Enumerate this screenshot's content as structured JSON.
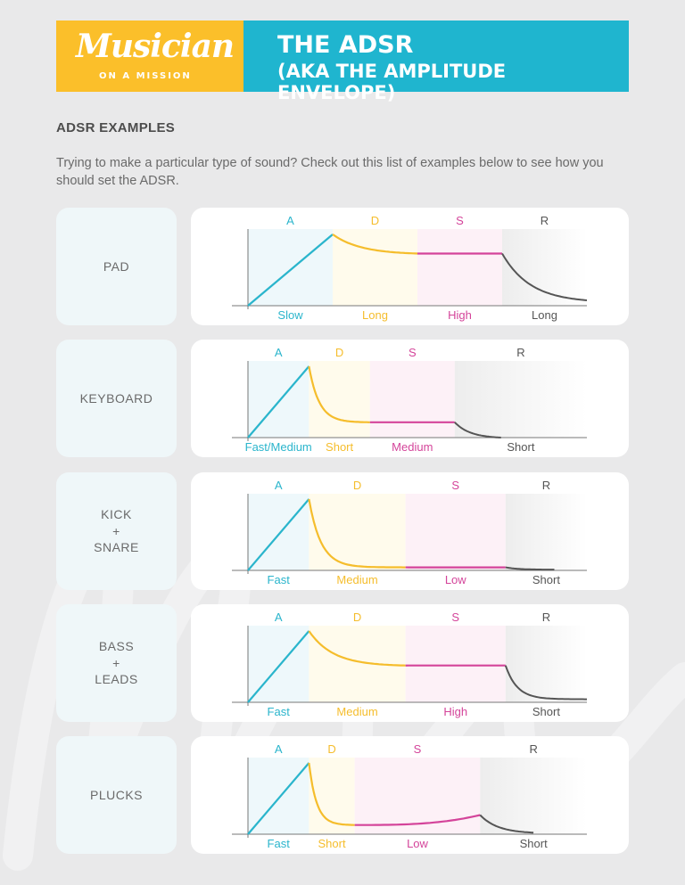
{
  "colors": {
    "attack": "#2ab5cc",
    "decay": "#f5bd2c",
    "sustain": "#d4449a",
    "release": "#555555",
    "banner_yellow": "#fbbf2a",
    "banner_teal": "#1fb5cf"
  },
  "header": {
    "logo_script": "Musician",
    "logo_sub": "ON A MISSION",
    "title_line1": "THE ADSR",
    "title_line2": "(AKA THE AMPLITUDE ENVELOPE)"
  },
  "section": {
    "heading": "ADSR EXAMPLES",
    "intro": "Trying to make a particular type of sound? Check out this list of examples below to see how you should set the ADSR."
  },
  "stage_letters": [
    "A",
    "D",
    "S",
    "R"
  ],
  "chart_data": [
    {
      "type": "diagram",
      "name_lines": [
        "PAD"
      ],
      "values": [
        "Slow",
        "Long",
        "High",
        "Long"
      ],
      "stage_fractions": [
        0.25,
        0.25,
        0.25,
        0.25
      ],
      "sustain_level": 0.68,
      "sustain_end_level": 0.68,
      "decay_curve": 3,
      "release_curve": 3,
      "release_end_level": 0.07
    },
    {
      "type": "diagram",
      "name_lines": [
        "KEYBOARD"
      ],
      "values": [
        "Fast/Medium",
        "Short",
        "Medium",
        "Short"
      ],
      "stage_fractions": [
        0.18,
        0.18,
        0.25,
        0.39
      ],
      "sustain_level": 0.2,
      "sustain_end_level": 0.2,
      "decay_curve": 6,
      "release_curve": 3,
      "release_end_level": 0.0,
      "release_span": 0.35
    },
    {
      "type": "diagram",
      "name_lines": [
        "KICK",
        "+",
        "SNARE"
      ],
      "values": [
        "Fast",
        "Medium",
        "Low",
        "Short"
      ],
      "stage_fractions": [
        0.18,
        0.285,
        0.295,
        0.24
      ],
      "sustain_level": 0.04,
      "sustain_end_level": 0.04,
      "decay_curve": 8,
      "release_curve": 4,
      "release_end_level": 0.01,
      "release_span": 0.6
    },
    {
      "type": "diagram",
      "name_lines": [
        "BASS",
        "+",
        "LEADS"
      ],
      "values": [
        "Fast",
        "Medium",
        "High",
        "Short"
      ],
      "stage_fractions": [
        0.18,
        0.285,
        0.295,
        0.24
      ],
      "sustain_level": 0.48,
      "sustain_end_level": 0.48,
      "decay_curve": 4,
      "release_curve": 7,
      "release_end_level": 0.04
    },
    {
      "type": "diagram",
      "name_lines": [
        "PLUCKS"
      ],
      "values": [
        "Fast",
        "Short",
        "Low",
        "Short"
      ],
      "stage_fractions": [
        0.18,
        0.135,
        0.37,
        0.315
      ],
      "sustain_level": 0.12,
      "sustain_end_level": 0.25,
      "decay_curve": 6,
      "release_curve": 3,
      "release_end_level": 0.02,
      "release_span": 0.5
    }
  ]
}
